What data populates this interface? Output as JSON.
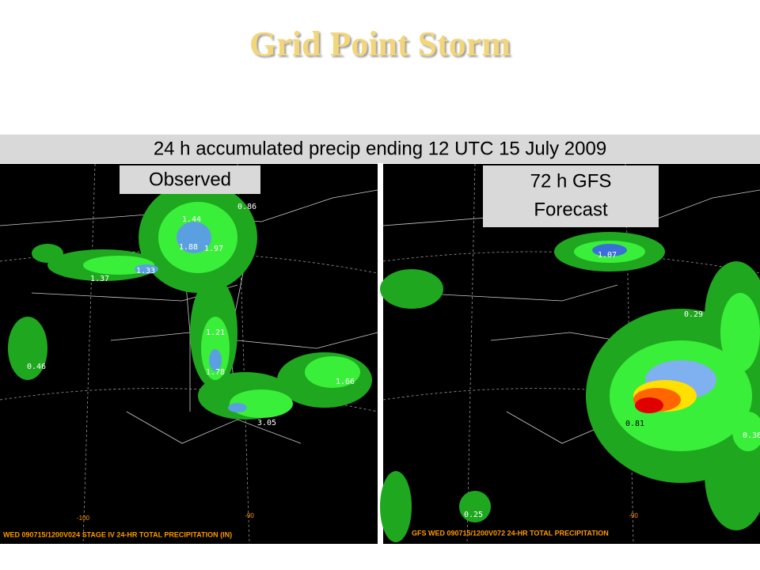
{
  "header": {
    "title": "Grid Point Storm",
    "subtitle": "24 h accumulated precip ending 12 UTC 15 July 2009"
  },
  "panels": [
    {
      "label": "Observed",
      "footer": "WED 090715/1200V024  STAGE IV 24-HR TOTAL PRECIPITATION (IN)",
      "axis_labels": [
        "-100",
        "-90"
      ],
      "points": [
        "1.44",
        "0.86",
        "1.88",
        "1.97",
        "1.33",
        "1.37",
        "1.21",
        "1.78",
        "0.46",
        "1.66",
        "3.05"
      ]
    },
    {
      "label_lines": [
        "72 h GFS",
        "Forecast"
      ],
      "footer": "GFS WED 090715/1200V072  24-HR TOTAL PRECIPITATION",
      "axis_labels": [
        "-90"
      ],
      "points": [
        "1.07",
        "0.29",
        "0.81",
        "0.36",
        "0.25"
      ]
    }
  ]
}
